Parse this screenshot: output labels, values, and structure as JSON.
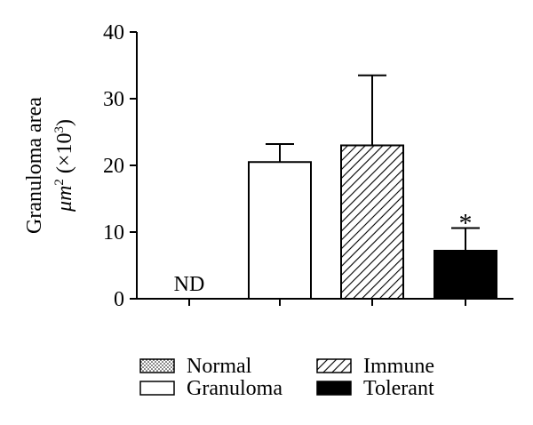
{
  "chart_data": {
    "type": "bar",
    "categories": [
      "Normal",
      "Granuloma",
      "Immune",
      "Tolerant"
    ],
    "values": [
      null,
      20.5,
      23.0,
      7.2
    ],
    "errors": [
      null,
      2.7,
      10.5,
      3.4
    ],
    "fills": [
      "dotted",
      "white",
      "hatched",
      "black"
    ],
    "bar_labels": [
      "ND",
      "",
      "",
      "*"
    ],
    "ylabel_line1": "Granuloma area",
    "ylabel_line2_unit": "μm",
    "ylabel_line2_exp": "2",
    "ylabel_line2_rest": " (×10",
    "ylabel_line2_exp2": "3",
    "ylabel_line2_close": ")",
    "ylim": [
      0,
      40
    ],
    "yticks": [
      0,
      10,
      20,
      30,
      40
    ],
    "grid": false,
    "legend": {
      "placement": "bottom",
      "items": [
        {
          "label": "Normal",
          "fill": "dotted"
        },
        {
          "label": "Immune",
          "fill": "hatched"
        },
        {
          "label": "Granuloma",
          "fill": "white"
        },
        {
          "label": "Tolerant",
          "fill": "black"
        }
      ]
    },
    "colors": {
      "axis": "#000000",
      "bar_stroke": "#000000",
      "solid": "#000000",
      "hollow": "#ffffff"
    }
  }
}
